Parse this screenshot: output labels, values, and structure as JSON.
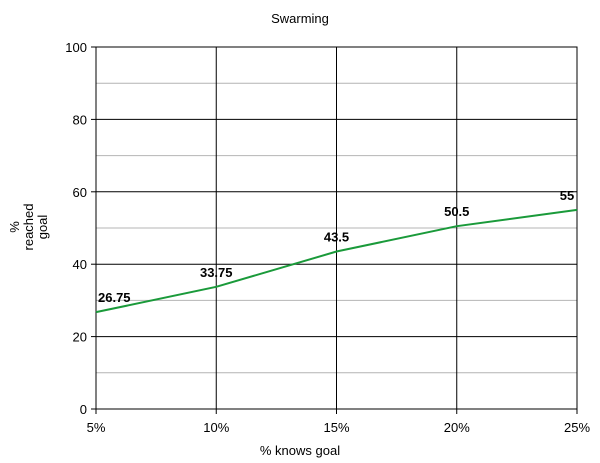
{
  "chart_data": {
    "type": "line",
    "title": "Swarming",
    "xlabel": "% knows goal",
    "ylabel_lines": [
      "%",
      "reached",
      "goal"
    ],
    "categories": [
      "5%",
      "10%",
      "15%",
      "20%",
      "25%"
    ],
    "series": [
      {
        "values": [
          26.75,
          33.75,
          43.5,
          50.5,
          55
        ],
        "data_labels": [
          "26.75",
          "33.75",
          "43.5",
          "50.5",
          "55"
        ],
        "color": "#1a9a3a"
      }
    ],
    "ylim": [
      0,
      100
    ],
    "yticks": [
      0,
      20,
      40,
      60,
      80,
      100
    ],
    "ytick_labels": [
      "0",
      "20",
      "40",
      "60",
      "80",
      "100"
    ],
    "minor_ystep": 10,
    "grid": true
  }
}
